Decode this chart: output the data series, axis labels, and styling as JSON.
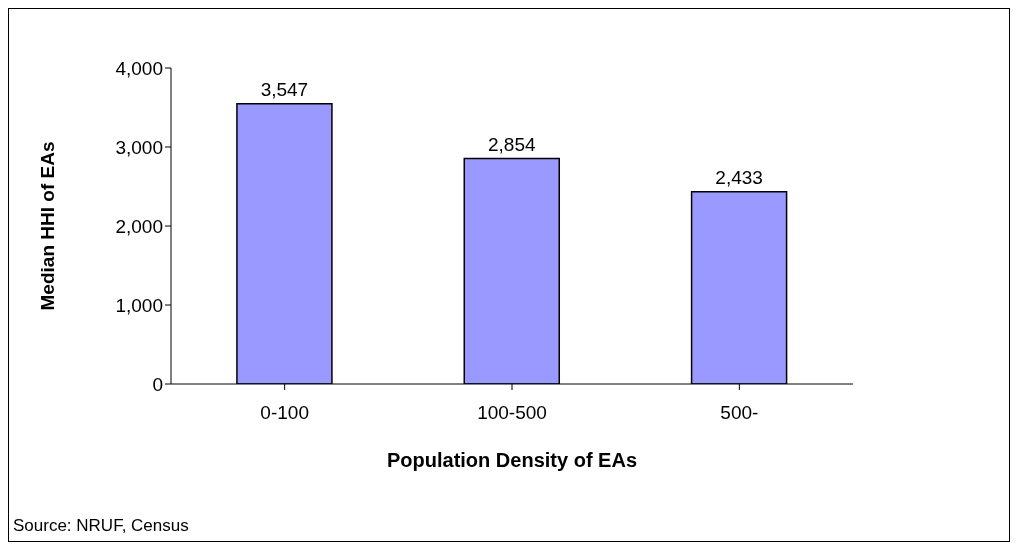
{
  "chart_data": {
    "type": "bar",
    "xlabel": "Population Density of EAs",
    "ylabel": "Median HHI of EAs",
    "categories": [
      "0-100",
      "100-500",
      "500-"
    ],
    "values": [
      3547,
      2854,
      2433
    ],
    "value_labels": [
      "3,547",
      "2,854",
      "2,433"
    ],
    "color": "#9999ff",
    "ylim": [
      0,
      4000
    ],
    "yticks": [
      {
        "value": 0,
        "label": "0"
      },
      {
        "value": 1000,
        "label": "1,000"
      },
      {
        "value": 2000,
        "label": "2,000"
      },
      {
        "value": 3000,
        "label": "3,000"
      },
      {
        "value": 4000,
        "label": "4,000"
      }
    ],
    "grid": false,
    "annotations": [
      "Source: NRUF, Census"
    ]
  }
}
